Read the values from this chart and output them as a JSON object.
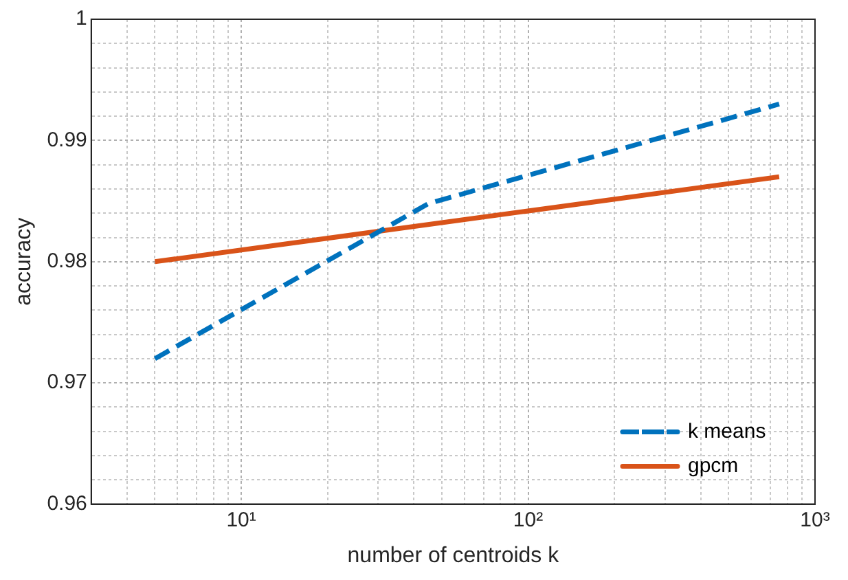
{
  "chart_data": {
    "type": "line",
    "xlabel": "number of centroids k",
    "ylabel": "accuracy",
    "log": "x",
    "xlim": [
      3,
      1000
    ],
    "xticks": [
      {
        "value": 3,
        "label": null
      },
      {
        "value": 4,
        "label": null
      },
      {
        "value": 5,
        "label": null
      },
      {
        "value": 6,
        "label": null
      },
      {
        "value": 7,
        "label": null
      },
      {
        "value": 8,
        "label": null
      },
      {
        "value": 9,
        "label": null
      },
      {
        "value": 10,
        "label": "10¹"
      },
      {
        "value": 20,
        "label": null
      },
      {
        "value": 30,
        "label": null
      },
      {
        "value": 40,
        "label": null
      },
      {
        "value": 50,
        "label": null
      },
      {
        "value": 60,
        "label": null
      },
      {
        "value": 70,
        "label": null
      },
      {
        "value": 80,
        "label": null
      },
      {
        "value": 90,
        "label": null
      },
      {
        "value": 100,
        "label": "10²"
      },
      {
        "value": 200,
        "label": null
      },
      {
        "value": 300,
        "label": null
      },
      {
        "value": 400,
        "label": null
      },
      {
        "value": 500,
        "label": null
      },
      {
        "value": 600,
        "label": null
      },
      {
        "value": 700,
        "label": null
      },
      {
        "value": 800,
        "label": null
      },
      {
        "value": 900,
        "label": null
      },
      {
        "value": 1000,
        "label": "10³"
      }
    ],
    "ylim": [
      0.96,
      1
    ],
    "yticks": [
      0.96,
      {
        "value": 0.962,
        "label": null
      },
      {
        "value": 0.964,
        "label": null
      },
      {
        "value": 0.966,
        "label": null
      },
      {
        "value": 0.968,
        "label": null
      },
      0.97,
      {
        "value": 0.972,
        "label": null
      },
      {
        "value": 0.974,
        "label": null
      },
      {
        "value": 0.976,
        "label": null
      },
      {
        "value": 0.978,
        "label": null
      },
      0.98,
      {
        "value": 0.982,
        "label": null
      },
      {
        "value": 0.984,
        "label": null
      },
      {
        "value": 0.986,
        "label": null
      },
      {
        "value": 0.988,
        "label": null
      },
      0.99,
      {
        "value": 0.992,
        "label": null
      },
      {
        "value": 0.994,
        "label": null
      },
      {
        "value": 0.996,
        "label": null
      },
      {
        "value": 0.998,
        "label": null
      },
      1
    ],
    "grid": true,
    "legend": "bottom right",
    "marker": "none",
    "series": [
      {
        "name": "k means",
        "color": "#0072bd",
        "line_style": "dashed",
        "x": [
          5,
          45,
          750
        ],
        "values": [
          0.972,
          0.9848,
          0.993
        ]
      },
      {
        "name": "gpcm",
        "color": "#d95319",
        "line_style": "solid",
        "x": [
          5,
          750
        ],
        "values": [
          0.98,
          0.987
        ]
      }
    ]
  }
}
